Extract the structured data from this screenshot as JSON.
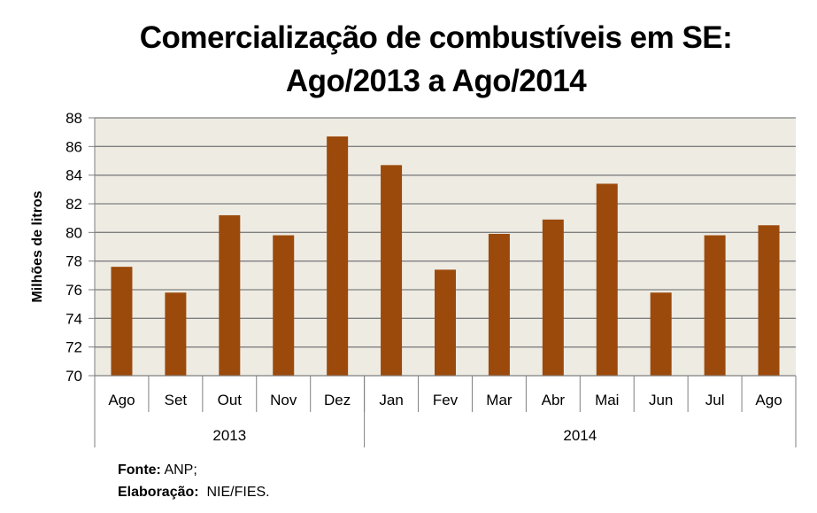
{
  "chart_data": {
    "type": "bar",
    "title_line1": "Comercialização de combustíveis em SE:",
    "title_line2": "Ago/2013 a Ago/2014",
    "ylabel": "Milhões de litros",
    "xlabel": "",
    "ylim": [
      70,
      88
    ],
    "yticks": [
      70,
      72,
      74,
      76,
      78,
      80,
      82,
      84,
      86,
      88
    ],
    "grid": true,
    "categories": [
      "Ago",
      "Set",
      "Out",
      "Nov",
      "Dez",
      "Jan",
      "Fev",
      "Mar",
      "Abr",
      "Mai",
      "Jun",
      "Jul",
      "Ago"
    ],
    "groups": [
      {
        "label": "2013",
        "count": 5
      },
      {
        "label": "2014",
        "count": 8
      }
    ],
    "values": [
      77.6,
      75.8,
      81.2,
      79.8,
      86.7,
      84.7,
      77.4,
      79.9,
      80.9,
      83.4,
      75.8,
      79.8,
      80.5
    ],
    "bar_color": "#9C4A0B",
    "plot_bg": "#EEEBE3"
  },
  "footer": {
    "source_label": "Fonte:",
    "source_value": "ANP;",
    "author_label": "Elaboração:",
    "author_value": "NIE/FIES."
  }
}
